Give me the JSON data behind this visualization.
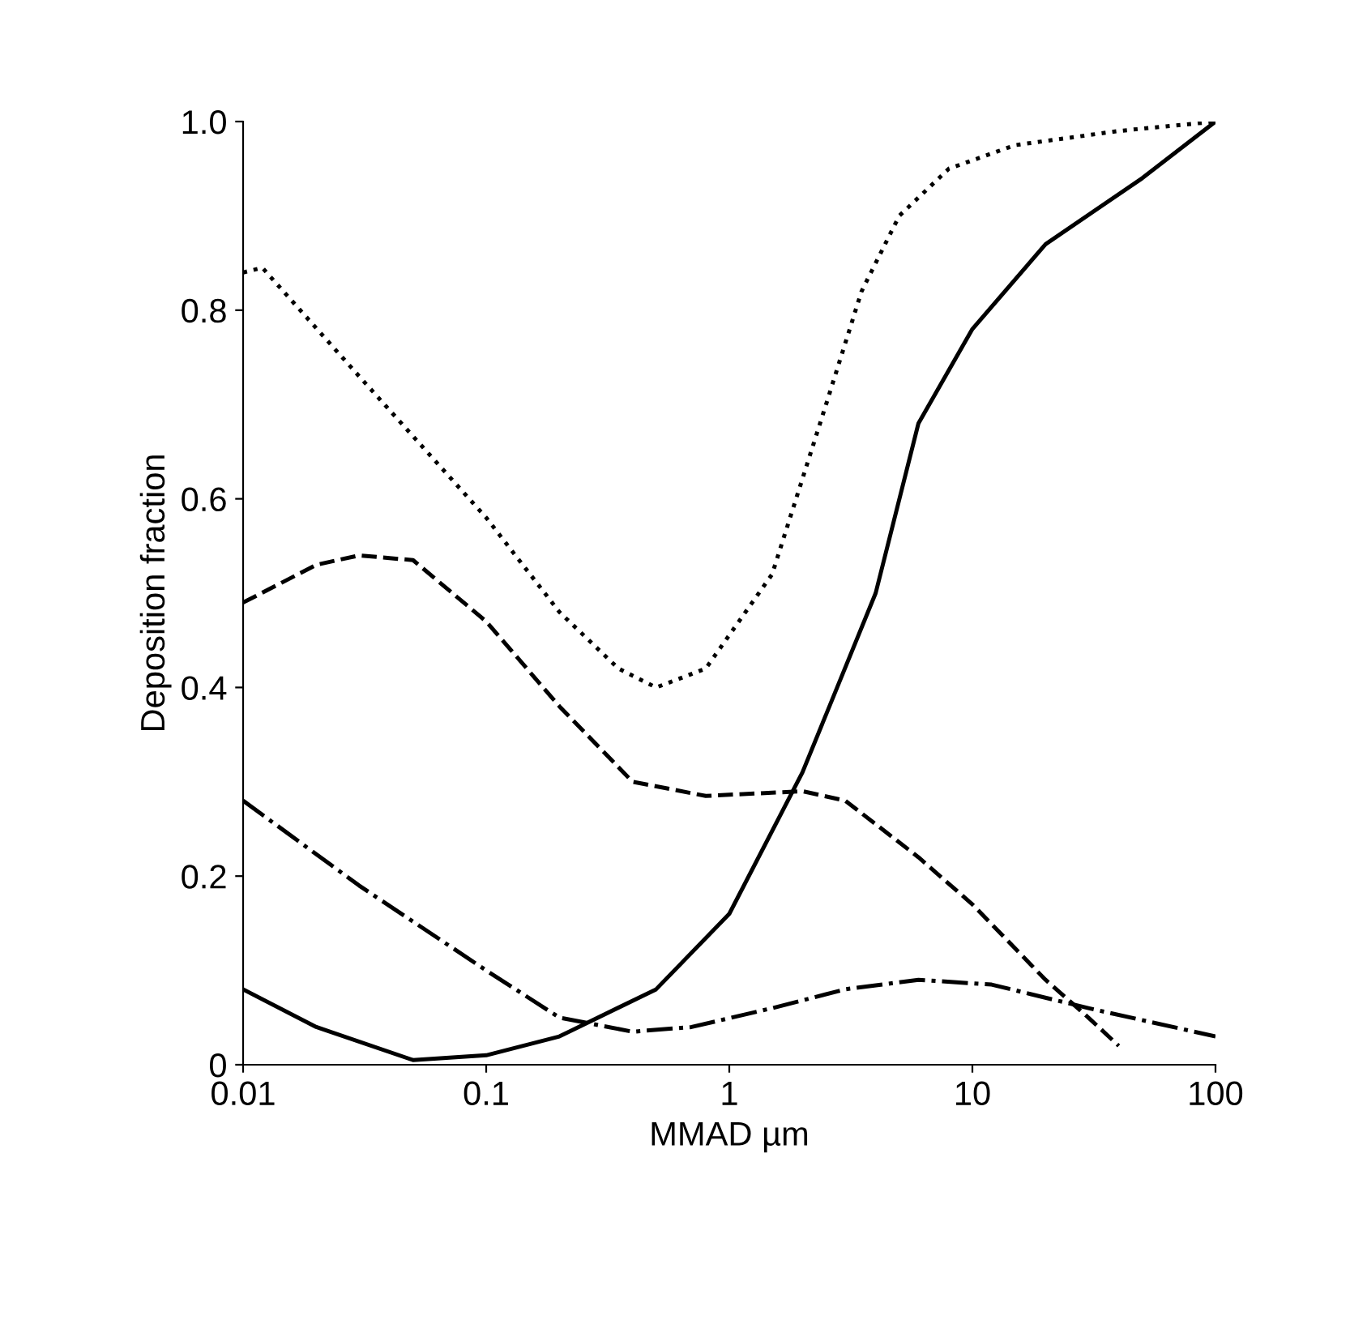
{
  "chart_data": {
    "type": "line",
    "xlabel": "MMAD µm",
    "ylabel": "Deposition fraction",
    "log": "x",
    "grid": false,
    "marker": "none",
    "xlim": [
      0.01,
      100
    ],
    "xticks": [
      0.01,
      0.1,
      1,
      10,
      100
    ],
    "ylim": [
      0,
      1.0
    ],
    "yticks": [
      0,
      {
        "value": 0.2,
        "label": "0.2"
      },
      {
        "value": 0.4,
        "label": "0.4"
      },
      {
        "value": 0.6,
        "label": "0.6"
      },
      {
        "value": 0.8,
        "label": "0.8"
      },
      {
        "value": 1.0,
        "label": "1.0"
      }
    ],
    "series": [
      {
        "color": "#000000",
        "line_style": "dotted",
        "x": [
          0.01,
          0.012,
          0.03,
          0.1,
          0.2,
          0.35,
          0.5,
          0.8,
          1.5,
          2.5,
          3.5,
          5,
          8,
          15,
          40,
          100
        ],
        "values": [
          0.84,
          0.845,
          0.73,
          0.58,
          0.48,
          0.42,
          0.4,
          0.42,
          0.52,
          0.7,
          0.82,
          0.9,
          0.95,
          0.975,
          0.99,
          1.0
        ]
      },
      {
        "color": "#000000",
        "line_style": "dashed",
        "x": [
          0.01,
          0.02,
          0.03,
          0.05,
          0.1,
          0.2,
          0.4,
          0.8,
          2,
          3,
          6,
          10,
          20,
          30,
          40
        ],
        "values": [
          0.49,
          0.53,
          0.54,
          0.535,
          0.47,
          0.38,
          0.3,
          0.285,
          0.29,
          0.28,
          0.22,
          0.17,
          0.09,
          0.05,
          0.02
        ]
      },
      {
        "color": "#000000",
        "line_style": "solid",
        "x": [
          0.01,
          0.02,
          0.05,
          0.1,
          0.2,
          0.5,
          1,
          2,
          4,
          6,
          10,
          20,
          50,
          100
        ],
        "values": [
          0.08,
          0.04,
          0.005,
          0.01,
          0.03,
          0.08,
          0.16,
          0.31,
          0.5,
          0.68,
          0.78,
          0.87,
          0.94,
          1.0
        ]
      },
      {
        "color": "#000000",
        "line_style": "dashdot",
        "x": [
          0.01,
          0.03,
          0.1,
          0.2,
          0.4,
          0.7,
          1.5,
          3,
          6,
          12,
          30,
          100
        ],
        "values": [
          0.28,
          0.19,
          0.1,
          0.05,
          0.035,
          0.04,
          0.06,
          0.08,
          0.09,
          0.085,
          0.06,
          0.03
        ]
      }
    ]
  }
}
